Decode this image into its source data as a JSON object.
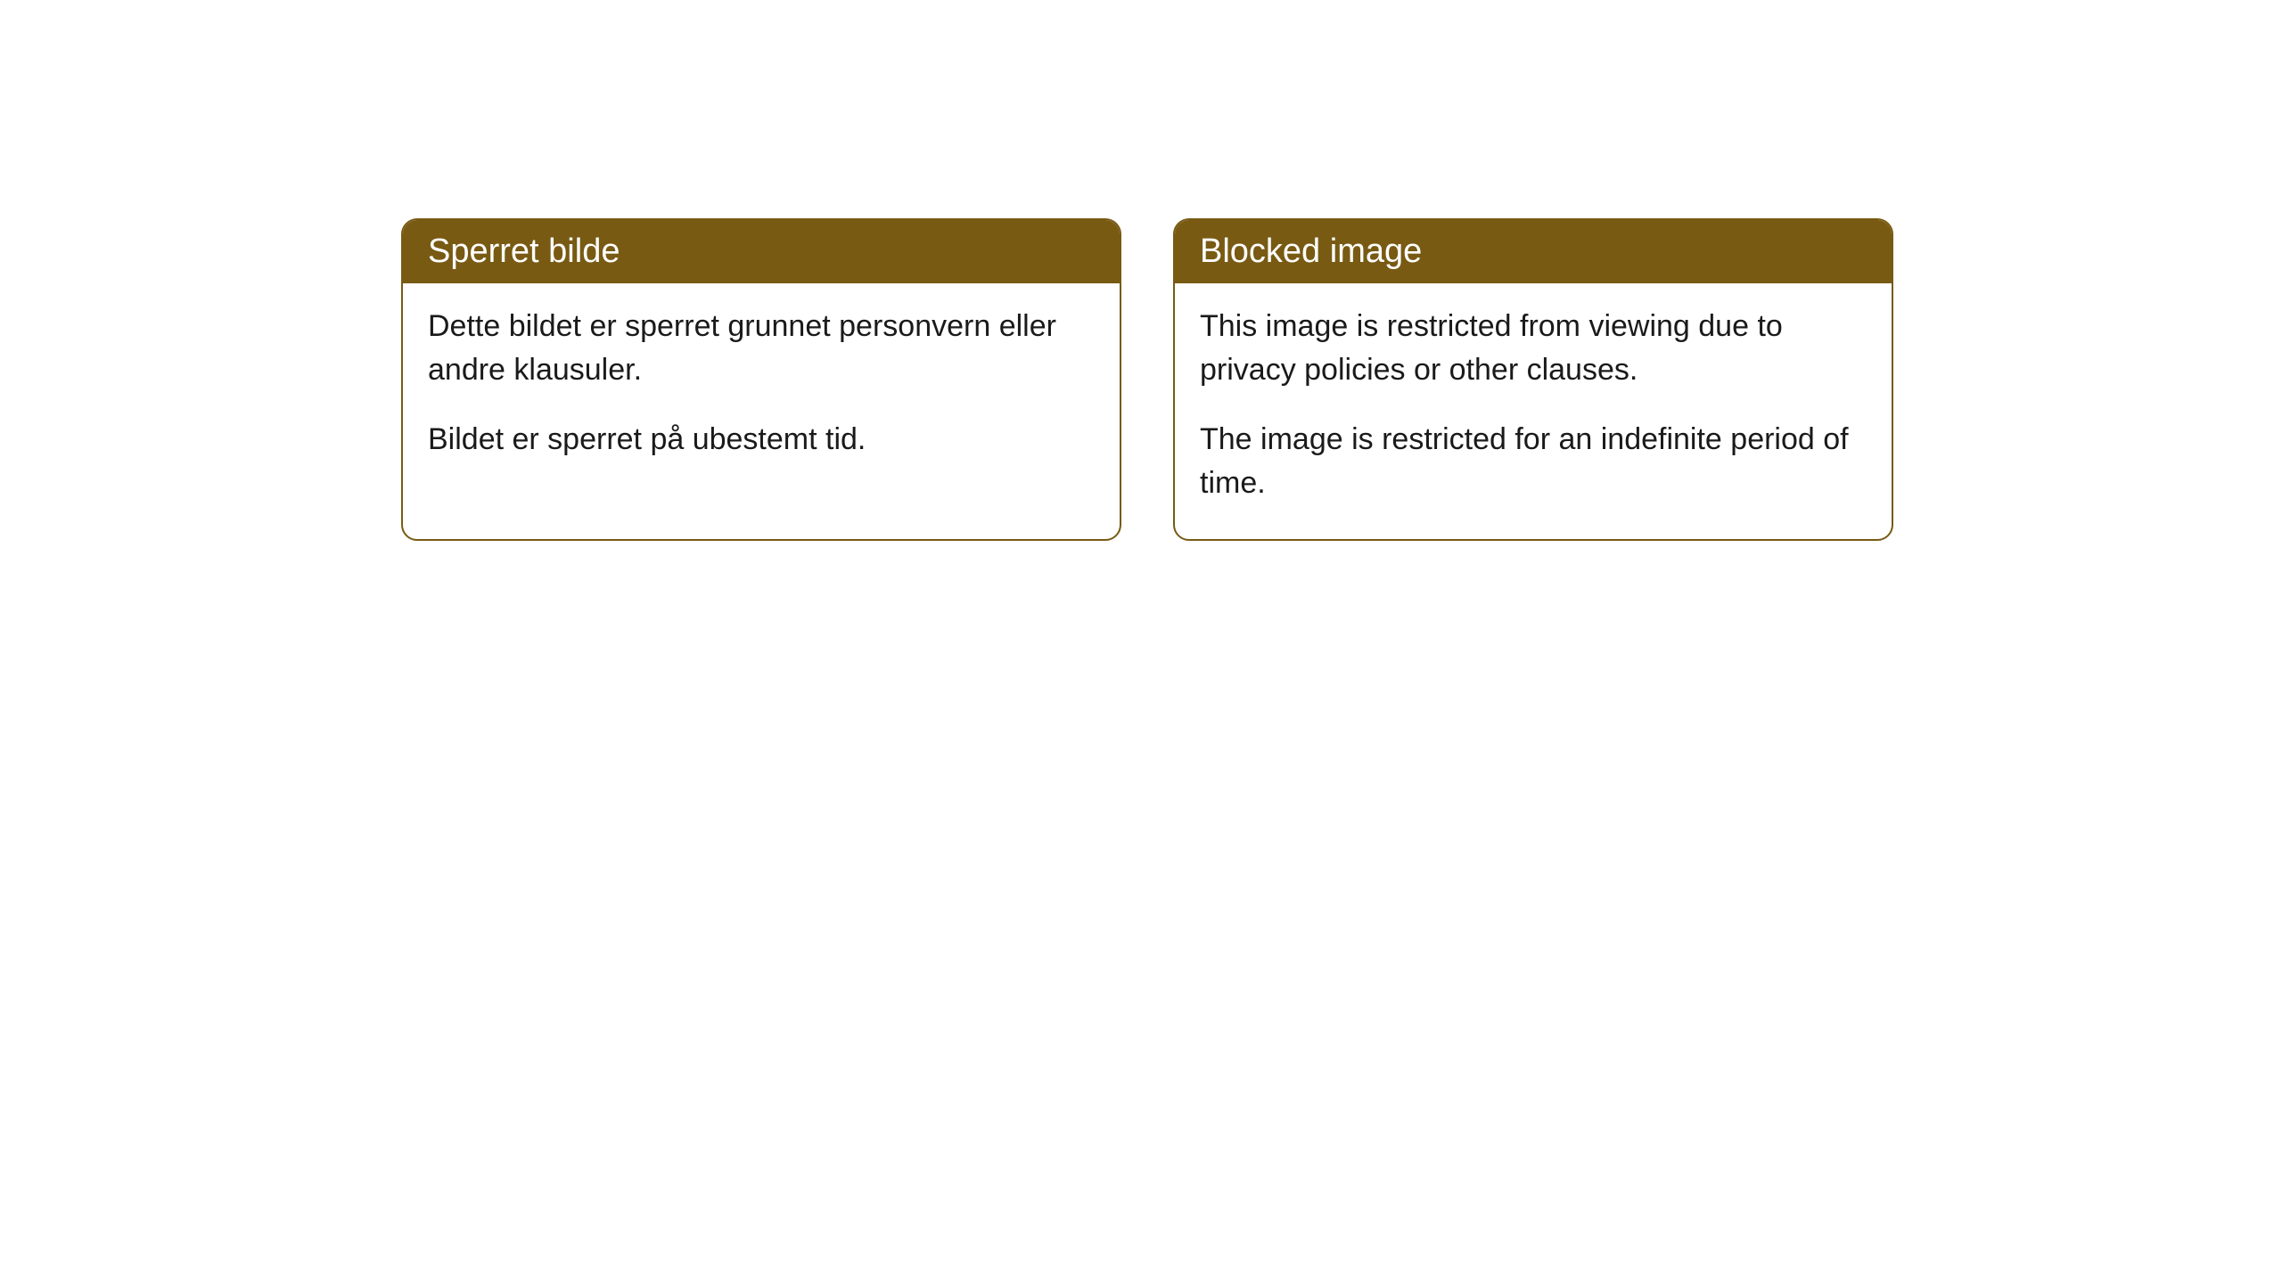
{
  "cards": [
    {
      "title": "Sperret bilde",
      "paragraph1": "Dette bildet er sperret grunnet personvern eller andre klausuler.",
      "paragraph2": "Bildet er sperret på ubestemt tid."
    },
    {
      "title": "Blocked image",
      "paragraph1": "This image is restricted from viewing due to privacy policies or other clauses.",
      "paragraph2": "The image is restricted for an indefinite period of time."
    }
  ],
  "styling": {
    "header_bg_color": "#785a13",
    "header_text_color": "#ffffff",
    "border_color": "#785a13",
    "body_bg_color": "#ffffff",
    "body_text_color": "#1a1a1a",
    "border_radius": 18,
    "title_fontsize": 38,
    "body_fontsize": 34
  }
}
